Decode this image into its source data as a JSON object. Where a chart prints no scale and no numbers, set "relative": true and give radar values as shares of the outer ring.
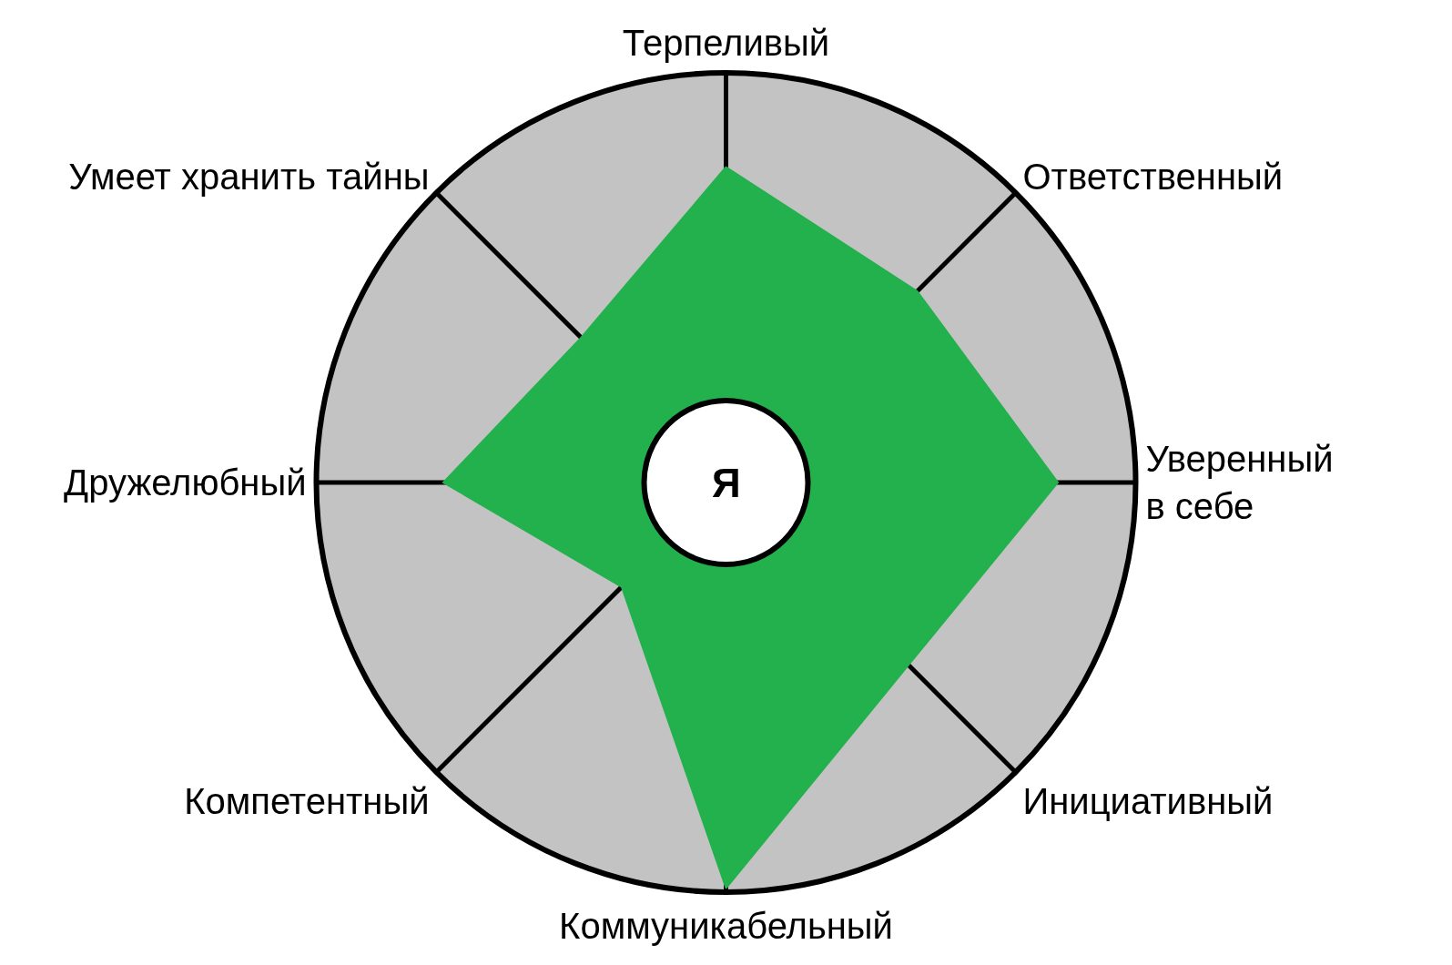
{
  "chart_data": {
    "type": "radar",
    "relative": true,
    "categories": [
      "Терпеливый",
      "Ответственный",
      "Уверенный\nв себе",
      "Инициативный",
      "Коммуникабельный",
      "Компетентный",
      "Дружелюбный",
      "Умеет хранить тайны"
    ],
    "series": [
      {
        "color": "#23b14d",
        "values": [
          0.77,
          0.66,
          0.81,
          0.63,
          0.99,
          0.36,
          0.69,
          0.5
        ]
      }
    ],
    "annotations": [
      "Я"
    ],
    "grid": "x"
  }
}
